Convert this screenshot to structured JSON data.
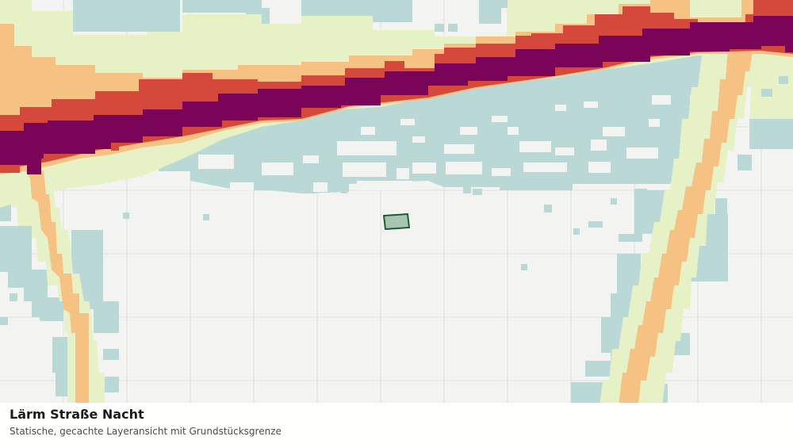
{
  "map": {
    "title": "Lärm Straße Nacht",
    "subtitle": "Statische, gecachte Layeransicht mit Grundstücksgrenze",
    "colors": {
      "background": "#f3f4f2",
      "grid": "#dfe1de",
      "noise_class_1": "#b9d8d6",
      "noise_class_2": "#e6f2c5",
      "noise_class_3": "#f5c283",
      "noise_class_4": "#d4493b",
      "noise_class_5": "#790458",
      "parcel_fill": "#a8c5b2",
      "parcel_stroke": "#1e5b38"
    }
  }
}
